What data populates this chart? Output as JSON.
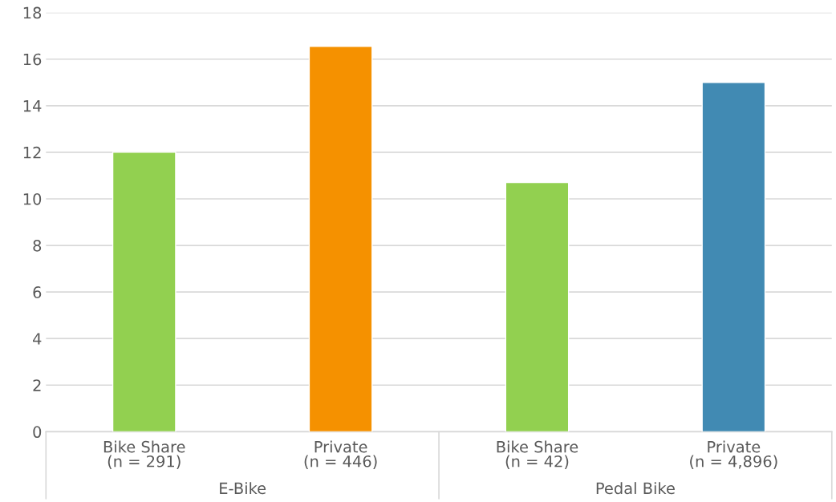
{
  "chart_data": {
    "type": "bar",
    "categories": [
      "Bike Share\n(n = 291)",
      "Private\n(n = 446)",
      "Bike Share\n(n = 42)",
      "Private\n(n = 4,896)"
    ],
    "values": [
      12.0,
      16.55,
      10.7,
      15.0
    ],
    "colors": [
      "#92d050",
      "#f59100",
      "#92d050",
      "#418ab3"
    ],
    "ylim": [
      0,
      18
    ],
    "yticks": [
      0,
      2,
      4,
      6,
      8,
      10,
      12,
      14,
      16,
      18
    ],
    "grid": "y",
    "annotations": [
      "E-Bike",
      "Pedal Bike"
    ]
  }
}
